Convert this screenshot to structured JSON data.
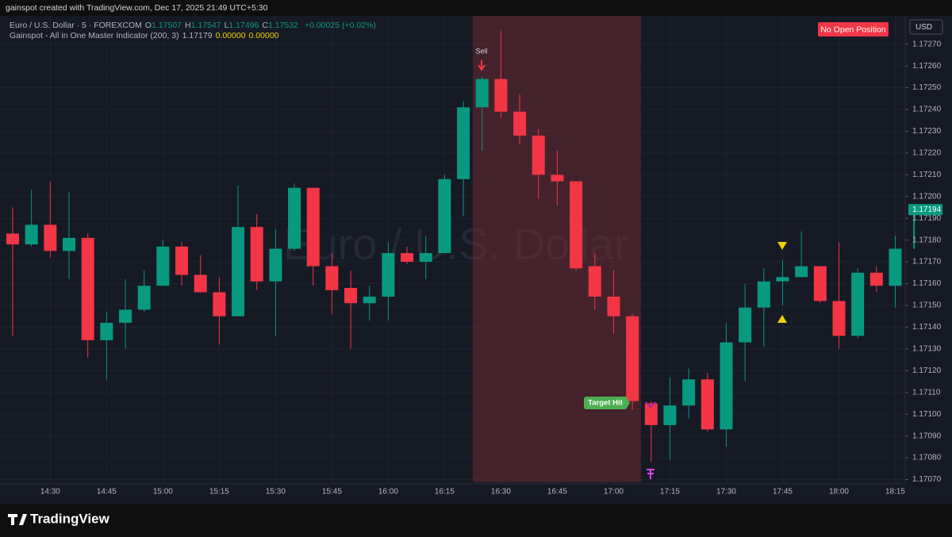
{
  "chart_data": {
    "type": "candlestick",
    "credit": "gainspot created with TradingView.com, Dec 17, 2025 21:49 UTC+5:30",
    "symbol": "Euro / U.S. Dollar · 5 · FOREXCOM",
    "ohlc_legend": [
      {
        "label": "O",
        "value": "1.17507"
      },
      {
        "label": "H",
        "value": "1.17547"
      },
      {
        "label": "L",
        "value": "1.17496"
      },
      {
        "label": "C",
        "value": "1.17532"
      }
    ],
    "change": "+0.00025 (+0.02%)",
    "indicator": {
      "name": "Gainspot - All in One Master Indicator (200, 3)",
      "values": [
        "1.17179",
        "0.00000",
        "0.00000"
      ]
    },
    "status_badge": "No Open Position",
    "currency": "USD",
    "watermark": "Euro / U.S. Dollar",
    "annotations": [
      "Sell",
      "Target Hit"
    ],
    "brand": "TradingView",
    "last_price": 1.17194,
    "up_color": "#089981",
    "down_color": "#f23645",
    "categories": [
      null,
      null,
      "14:30",
      null,
      null,
      "14:45",
      null,
      null,
      "15:00",
      null,
      null,
      "15:15",
      null,
      null,
      "15:30",
      null,
      null,
      "15:45",
      null,
      null,
      "16:00",
      null,
      null,
      "16:15",
      null,
      null,
      "16:30",
      null,
      null,
      "16:45",
      null,
      null,
      "17:00",
      null,
      null,
      "17:15",
      null,
      null,
      "17:30",
      null,
      null,
      "17:45",
      null,
      null,
      "18:00",
      null,
      null,
      "18:15",
      null
    ],
    "open": [
      1.17183,
      1.17178,
      1.17187,
      1.17175,
      1.17181,
      1.17134,
      1.17142,
      1.17148,
      1.17159,
      1.17177,
      1.17164,
      1.17156,
      1.17145,
      1.17186,
      1.17161,
      1.17176,
      1.17204,
      1.17168,
      1.17158,
      1.17151,
      1.17154,
      1.17174,
      1.1717,
      1.17174,
      1.17208,
      1.17241,
      1.17254,
      1.17239,
      1.17228,
      1.1721,
      1.17207,
      1.17168,
      1.17154,
      1.17145,
      1.17105,
      1.17095,
      1.17104,
      1.17116,
      1.17093,
      1.17133,
      1.17149,
      1.17161,
      1.17163,
      1.17168,
      1.17152,
      1.17136,
      1.17165,
      1.17159,
      1.17176
    ],
    "high": [
      1.17195,
      1.17203,
      1.17207,
      1.17202,
      1.17183,
      1.17147,
      1.17162,
      1.17166,
      1.1718,
      1.17179,
      1.17173,
      1.17163,
      1.17205,
      1.17192,
      1.17185,
      1.17206,
      1.17204,
      1.17174,
      1.17166,
      1.17159,
      1.17179,
      1.17177,
      1.17182,
      1.1721,
      1.17244,
      1.17255,
      1.17276,
      1.17247,
      1.17231,
      1.17221,
      1.17207,
      1.17174,
      1.17166,
      1.17146,
      1.17106,
      1.17117,
      1.17121,
      1.17119,
      1.17142,
      1.1716,
      1.17167,
      1.17171,
      1.17184,
      1.17168,
      1.17179,
      1.17167,
      1.17168,
      1.17182,
      1.17195
    ],
    "low": [
      1.17136,
      1.17177,
      1.17172,
      1.17162,
      1.17126,
      1.17116,
      1.1713,
      1.17147,
      1.17159,
      1.17159,
      1.17156,
      1.17132,
      1.17145,
      1.17157,
      1.17136,
      1.17175,
      1.17159,
      1.17146,
      1.1713,
      1.17143,
      1.17143,
      1.17169,
      1.17162,
      1.17174,
      1.17191,
      1.17221,
      1.17236,
      1.17224,
      1.17199,
      1.17196,
      1.17166,
      1.17148,
      1.17137,
      1.17102,
      1.17078,
      1.17079,
      1.17098,
      1.17092,
      1.17085,
      1.17115,
      1.17131,
      1.1715,
      1.17163,
      1.17151,
      1.1713,
      1.17135,
      1.17156,
      1.17149,
      1.17176
    ],
    "close": [
      1.17178,
      1.17187,
      1.17175,
      1.17181,
      1.17134,
      1.17142,
      1.17148,
      1.17159,
      1.17177,
      1.17164,
      1.17156,
      1.17145,
      1.17186,
      1.17161,
      1.17176,
      1.17204,
      1.17168,
      1.17157,
      1.17151,
      1.17154,
      1.17174,
      1.1717,
      1.17174,
      1.17208,
      1.17241,
      1.17254,
      1.17239,
      1.17228,
      1.1721,
      1.17207,
      1.17167,
      1.17154,
      1.17145,
      1.17106,
      1.17095,
      1.17104,
      1.17116,
      1.17093,
      1.17133,
      1.17149,
      1.17161,
      1.17163,
      1.17168,
      1.17152,
      1.17136,
      1.17165,
      1.17159,
      1.17176,
      1.17194
    ],
    "ylim": [
      1.17068,
      1.17283
    ],
    "yticks": [
      {
        "value": 1.1707,
        "label": "1.17070"
      },
      {
        "value": 1.1708,
        "label": "1.17080"
      },
      {
        "value": 1.1709,
        "label": "1.17090"
      },
      {
        "value": 1.171,
        "label": "1.17100"
      },
      {
        "value": 1.1711,
        "label": "1.17110"
      },
      {
        "value": 1.1712,
        "label": "1.17120"
      },
      {
        "value": 1.1713,
        "label": "1.17130"
      },
      {
        "value": 1.1714,
        "label": "1.17140"
      },
      {
        "value": 1.1715,
        "label": "1.17150"
      },
      {
        "value": 1.1716,
        "label": "1.17160"
      },
      {
        "value": 1.1717,
        "label": "1.17170"
      },
      {
        "value": 1.1718,
        "label": "1.17180"
      },
      {
        "value": 1.1719,
        "label": "1.17190"
      },
      {
        "value": 1.172,
        "label": "1.17200"
      },
      {
        "value": 1.1721,
        "label": "1.17210"
      },
      {
        "value": 1.1722,
        "label": "1.17220"
      },
      {
        "value": 1.1723,
        "label": "1.17230"
      },
      {
        "value": 1.1724,
        "label": "1.17240"
      },
      {
        "value": 1.1725,
        "label": "1.17250"
      },
      {
        "value": 1.1726,
        "label": "1.17260"
      },
      {
        "value": 1.1727,
        "label": "1.17270"
      }
    ],
    "grid": true
  }
}
